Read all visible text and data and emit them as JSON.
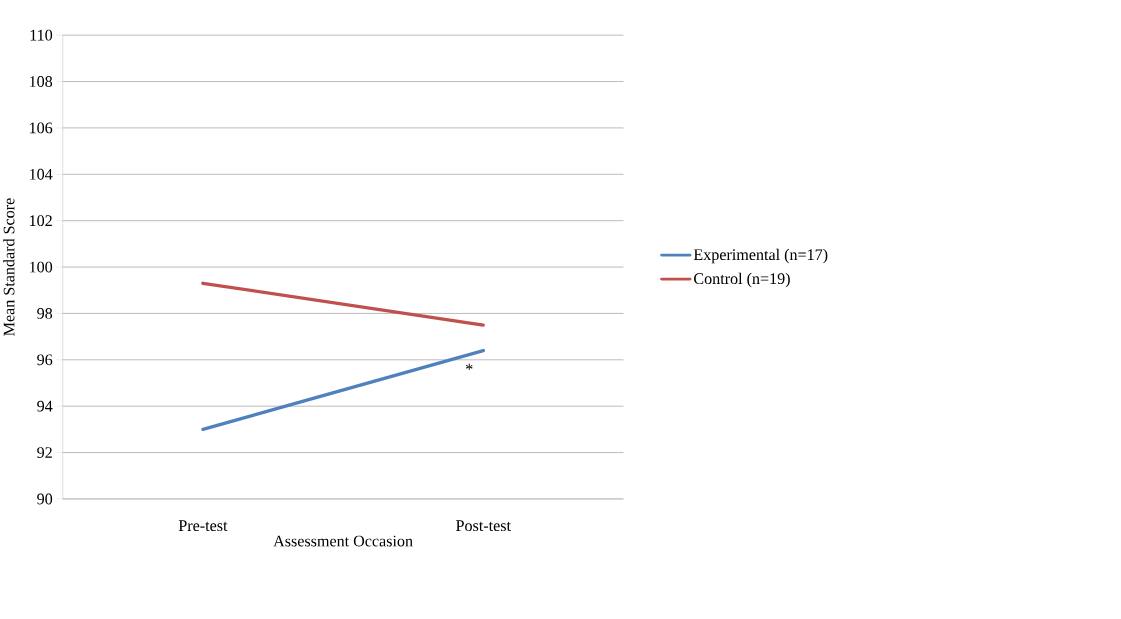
{
  "chart_data": {
    "type": "line",
    "xlabel": "Assessment Occasion",
    "ylabel": "Mean Standard Score",
    "categories": [
      "Pre-test",
      "Post-test"
    ],
    "series": [
      {
        "name": "Experimental (n=17)",
        "color": "#4f81bd",
        "values": [
          93.0,
          96.4
        ]
      },
      {
        "name": "Control (n=19)",
        "color": "#c0504d",
        "values": [
          99.3,
          97.5
        ]
      }
    ],
    "ylim": [
      90,
      110
    ],
    "yticks": [
      90,
      92,
      94,
      96,
      98,
      100,
      102,
      104,
      106,
      108,
      110
    ],
    "grid": "y",
    "legend": "right",
    "marker": "none",
    "line_style": "solid",
    "annotations": [
      "*"
    ]
  }
}
